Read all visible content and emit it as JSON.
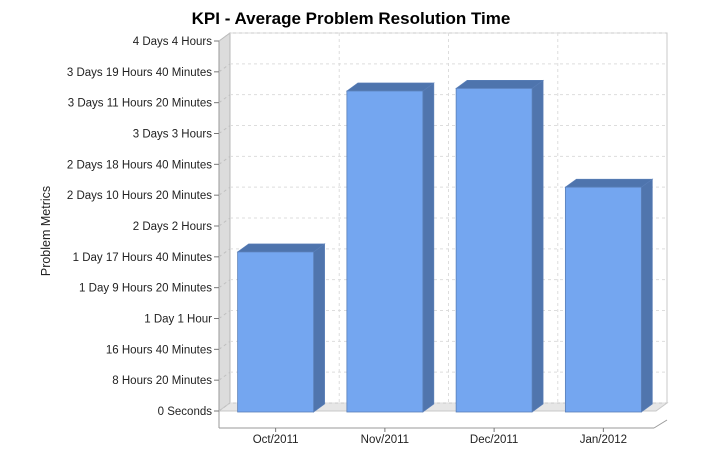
{
  "chart_data": {
    "type": "bar",
    "title": "KPI - Average Problem Resolution Time",
    "xlabel": "",
    "ylabel": "Problem Metrics",
    "categories": [
      "Oct/2011",
      "Nov/2011",
      "Dec/2011",
      "Jan/2012"
    ],
    "values": [
      43,
      86.5,
      87.2,
      60.5
    ],
    "value_unit": "hours",
    "ylim": [
      0,
      100
    ],
    "yticks": [
      {
        "value": 0,
        "label": "0 Seconds"
      },
      {
        "value": 8.333,
        "label": "8 Hours 20 Minutes"
      },
      {
        "value": 16.667,
        "label": "16 Hours 40 Minutes"
      },
      {
        "value": 25,
        "label": "1 Day 1 Hour"
      },
      {
        "value": 33.333,
        "label": "1 Day 9 Hours 20 Minutes"
      },
      {
        "value": 41.667,
        "label": "1 Day 17 Hours 40 Minutes"
      },
      {
        "value": 50,
        "label": "2 Days 2 Hours"
      },
      {
        "value": 58.333,
        "label": "2 Days 10 Hours 20 Minutes"
      },
      {
        "value": 66.667,
        "label": "2 Days 18 Hours 40 Minutes"
      },
      {
        "value": 75,
        "label": "3 Days 3 Hours"
      },
      {
        "value": 83.333,
        "label": "3 Days 11 Hours 20 Minutes"
      },
      {
        "value": 91.667,
        "label": "3 Days 19 Hours 40 Minutes"
      },
      {
        "value": 100,
        "label": "4 Days 4 Hours"
      }
    ],
    "grid": true,
    "style": "3d",
    "colors": {
      "bar_front": "#74a6f0",
      "bar_top": "#4e74ad",
      "bar_side": "#5075ad",
      "bar_edge": "#5a7fb8",
      "wall": "#dcdcdc",
      "floor": "#e6e6e6",
      "grid": "#dddddd"
    }
  }
}
